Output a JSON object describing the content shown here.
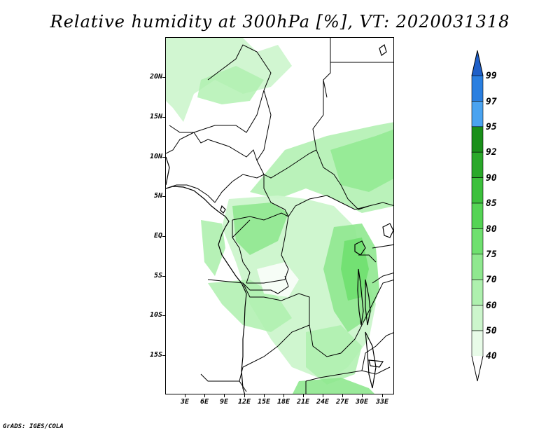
{
  "title": "Relative humidity at 300hPa [%], VT: 2020031318",
  "footer": "GrADS: IGES/COLA",
  "map": {
    "lat_labels": [
      "20N",
      "15N",
      "10N",
      "5N",
      "EQ",
      "5S",
      "10S",
      "15S"
    ],
    "lon_labels": [
      "3E",
      "6E",
      "9E",
      "12E",
      "15E",
      "18E",
      "21E",
      "24E",
      "27E",
      "30E",
      "33E"
    ],
    "lat_range": [
      -20,
      25
    ],
    "lon_range": [
      0,
      35
    ]
  },
  "colorbar": {
    "labels": [
      "99",
      "97",
      "95",
      "92",
      "90",
      "85",
      "80",
      "75",
      "70",
      "60",
      "50",
      "40"
    ],
    "colors": [
      "#1e5fc8",
      "#2a7fe0",
      "#4aa3f0",
      "#1a8f1a",
      "#2aa82a",
      "#3cc03c",
      "#55d455",
      "#6fe06f",
      "#8fe88f",
      "#aef0ae",
      "#ccf5cc",
      "#e8fbe8"
    ]
  }
}
